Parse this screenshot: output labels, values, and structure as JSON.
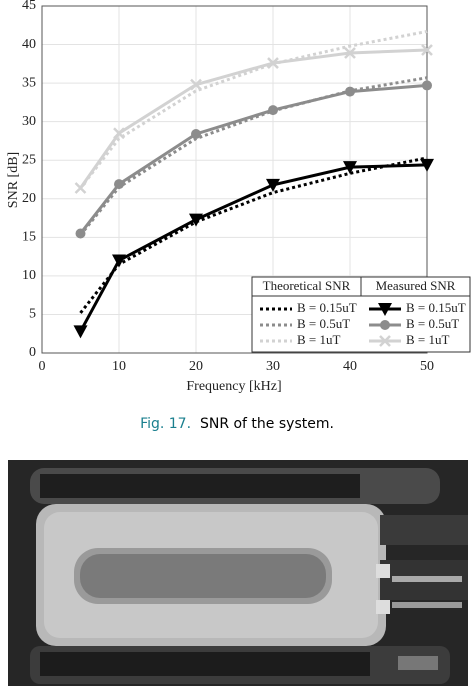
{
  "chart_data": {
    "type": "line",
    "xlabel": "Frequency [kHz]",
    "ylabel": "SNR [dB]",
    "x": [
      5,
      10,
      20,
      30,
      40,
      50
    ],
    "xlim": [
      0,
      50
    ],
    "xticks": [
      0,
      10,
      20,
      30,
      40,
      50
    ],
    "ylim": [
      0,
      45
    ],
    "yticks": [
      0,
      5,
      10,
      15,
      20,
      25,
      30,
      35,
      40,
      45
    ],
    "grid": true,
    "legend": {
      "position": "lower right",
      "columns": [
        {
          "title": "Theoretical SNR",
          "style": "dotted"
        },
        {
          "title": "Measured SNR",
          "style": "solid"
        }
      ]
    },
    "series": [
      {
        "name": "B = 0.15uT",
        "color": "#000000",
        "style": "dotted",
        "marker": "none",
        "values": [
          5.2,
          11.5,
          17,
          20.8,
          23.3,
          25.3
        ]
      },
      {
        "name": "B = 0.5uT",
        "color": "#8c8c8c",
        "style": "dotted",
        "marker": "none",
        "values": [
          15.3,
          21.5,
          27.8,
          31.4,
          34,
          35.7
        ]
      },
      {
        "name": "B = 1uT",
        "color": "#d2d2d2",
        "style": "dotted",
        "marker": "none",
        "values": [
          21.4,
          27.8,
          34,
          37.5,
          39.8,
          41.7
        ]
      },
      {
        "name": "B = 0.15uT",
        "color": "#000000",
        "style": "solid",
        "marker": "triangle",
        "values": [
          2.8,
          12,
          17.3,
          21.8,
          24.1,
          24.4
        ]
      },
      {
        "name": "B = 0.5uT",
        "color": "#8c8c8c",
        "style": "solid",
        "marker": "circle",
        "values": [
          15.5,
          21.9,
          28.4,
          31.5,
          33.9,
          34.7
        ]
      },
      {
        "name": "B = 1uT",
        "color": "#d2d2d2",
        "style": "solid",
        "marker": "cross",
        "values": [
          21.4,
          28.5,
          34.8,
          37.6,
          38.9,
          39.3
        ]
      }
    ]
  },
  "caption": {
    "label": "Fig. 17.",
    "text": "SNR of the system."
  }
}
